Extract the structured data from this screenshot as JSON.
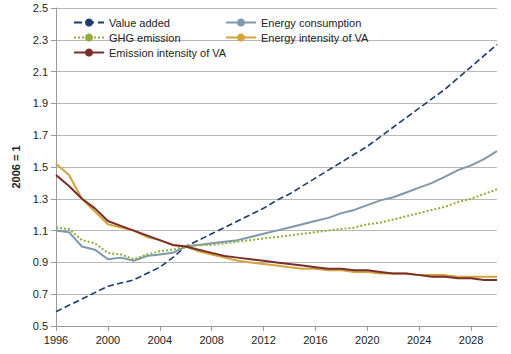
{
  "chart_data": {
    "type": "line",
    "y_label": "2006 = 1",
    "x": [
      1996,
      1997,
      1998,
      1999,
      2000,
      2001,
      2002,
      2003,
      2004,
      2005,
      2006,
      2007,
      2008,
      2009,
      2010,
      2011,
      2012,
      2013,
      2014,
      2015,
      2016,
      2017,
      2018,
      2019,
      2020,
      2021,
      2022,
      2023,
      2024,
      2025,
      2026,
      2027,
      2028,
      2029,
      2030
    ],
    "xlim": [
      1996,
      2030
    ],
    "xticks": [
      1996,
      2000,
      2004,
      2008,
      2012,
      2016,
      2020,
      2024,
      2028
    ],
    "ylim": [
      0.5,
      2.5
    ],
    "yticks": [
      0.5,
      0.7,
      0.9,
      1.1,
      1.3,
      1.5,
      1.7,
      1.9,
      2.1,
      2.3,
      2.5
    ],
    "grid": true,
    "legend": "top left",
    "series": [
      {
        "name": "Value added",
        "color": "#1f3a6e",
        "line_style": "dashed",
        "marker": "none",
        "values": [
          0.59,
          0.63,
          0.67,
          0.71,
          0.75,
          0.77,
          0.79,
          0.83,
          0.87,
          0.93,
          1.0,
          1.04,
          1.08,
          1.12,
          1.16,
          1.2,
          1.24,
          1.29,
          1.33,
          1.38,
          1.43,
          1.48,
          1.53,
          1.58,
          1.63,
          1.69,
          1.75,
          1.81,
          1.87,
          1.93,
          1.99,
          2.06,
          2.13,
          2.2,
          2.27
        ]
      },
      {
        "name": "Energy consumption",
        "color": "#7f97ab",
        "line_style": "solid",
        "marker": "none",
        "values": [
          1.1,
          1.09,
          1.0,
          0.98,
          0.92,
          0.93,
          0.91,
          0.94,
          0.95,
          0.96,
          1.0,
          1.01,
          1.02,
          1.03,
          1.04,
          1.06,
          1.08,
          1.1,
          1.12,
          1.14,
          1.16,
          1.18,
          1.21,
          1.23,
          1.26,
          1.29,
          1.31,
          1.34,
          1.37,
          1.4,
          1.44,
          1.48,
          1.51,
          1.55,
          1.6
        ]
      },
      {
        "name": "GHG emission",
        "color": "#8fae3c",
        "line_style": "dotted",
        "marker": "none",
        "values": [
          1.12,
          1.11,
          1.04,
          1.02,
          0.96,
          0.95,
          0.92,
          0.95,
          0.97,
          0.98,
          1.0,
          1.01,
          1.01,
          1.02,
          1.03,
          1.04,
          1.05,
          1.06,
          1.07,
          1.08,
          1.09,
          1.1,
          1.11,
          1.12,
          1.14,
          1.15,
          1.17,
          1.19,
          1.21,
          1.23,
          1.25,
          1.28,
          1.3,
          1.33,
          1.36
        ]
      },
      {
        "name": "Energy intensity of VA",
        "color": "#d1a43c",
        "line_style": "solid",
        "marker": "none",
        "values": [
          1.52,
          1.45,
          1.3,
          1.22,
          1.14,
          1.12,
          1.1,
          1.06,
          1.04,
          1.01,
          1.0,
          0.97,
          0.95,
          0.93,
          0.91,
          0.9,
          0.89,
          0.88,
          0.87,
          0.86,
          0.86,
          0.85,
          0.85,
          0.84,
          0.84,
          0.83,
          0.83,
          0.83,
          0.82,
          0.82,
          0.82,
          0.81,
          0.81,
          0.81,
          0.81
        ]
      },
      {
        "name": "Emission intensity of VA",
        "color": "#7a2e2a",
        "line_style": "solid",
        "marker": "none",
        "values": [
          1.45,
          1.38,
          1.3,
          1.24,
          1.16,
          1.13,
          1.1,
          1.07,
          1.04,
          1.01,
          1.0,
          0.98,
          0.96,
          0.94,
          0.93,
          0.92,
          0.91,
          0.9,
          0.89,
          0.88,
          0.87,
          0.86,
          0.86,
          0.85,
          0.85,
          0.84,
          0.83,
          0.83,
          0.82,
          0.81,
          0.81,
          0.8,
          0.8,
          0.79,
          0.79
        ]
      }
    ]
  }
}
